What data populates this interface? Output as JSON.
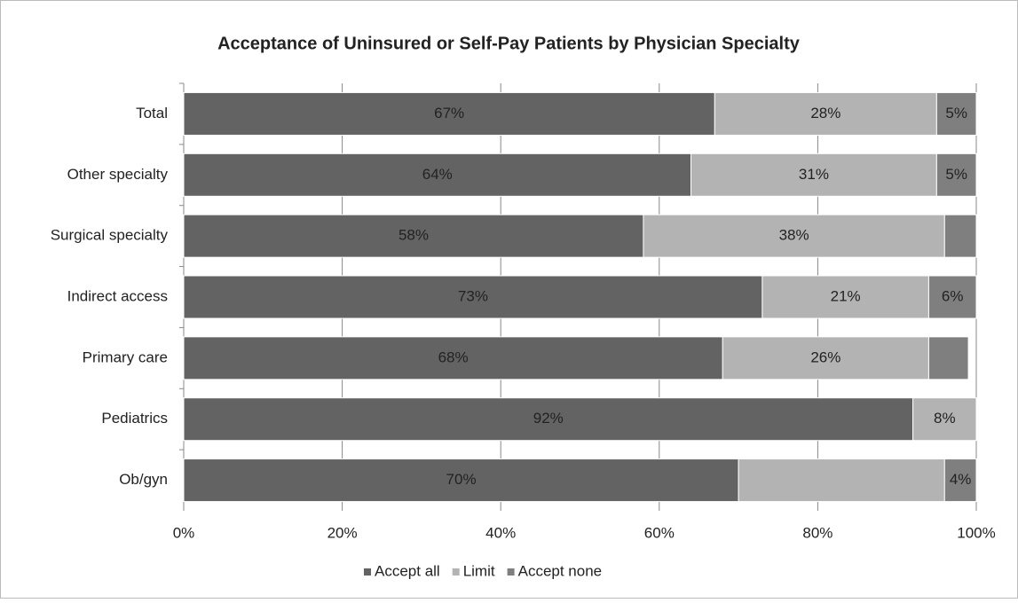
{
  "chart_data": {
    "type": "stacked_bar_horizontal",
    "title": "Acceptance of Uninsured or Self-Pay Patients by Physician Specialty",
    "categories": [
      "Total",
      "Other specialty",
      "Surgical specialty",
      "Indirect access",
      "Primary care",
      "Pediatrics",
      "Ob/gyn"
    ],
    "series": [
      {
        "name": "Accept all",
        "color": "#636363",
        "values": [
          67,
          64,
          58,
          73,
          68,
          92,
          70
        ],
        "value_labels": [
          "67%",
          "64%",
          "58%",
          "73%",
          "68%",
          "92%",
          "70%"
        ]
      },
      {
        "name": "Limit",
        "color": "#b3b3b3",
        "values": [
          28,
          31,
          38,
          21,
          26,
          8,
          26
        ],
        "value_labels": [
          "28%",
          "31%",
          "38%",
          "21%",
          "26%",
          "8%",
          null
        ]
      },
      {
        "name": "Accept none",
        "color": "#7f7f7f",
        "values": [
          5,
          5,
          4,
          6,
          5,
          0,
          4
        ],
        "value_labels": [
          "5%",
          "5%",
          null,
          "6%",
          null,
          null,
          "4%"
        ]
      }
    ],
    "xlim": [
      0,
      100
    ],
    "xticks": [
      {
        "value": 0,
        "label": "0%"
      },
      {
        "value": 20,
        "label": "20%"
      },
      {
        "value": 40,
        "label": "40%"
      },
      {
        "value": 60,
        "label": "60%"
      },
      {
        "value": 80,
        "label": "80%"
      },
      {
        "value": 100,
        "label": "100%"
      }
    ],
    "grid": true,
    "legend": "bottom"
  }
}
